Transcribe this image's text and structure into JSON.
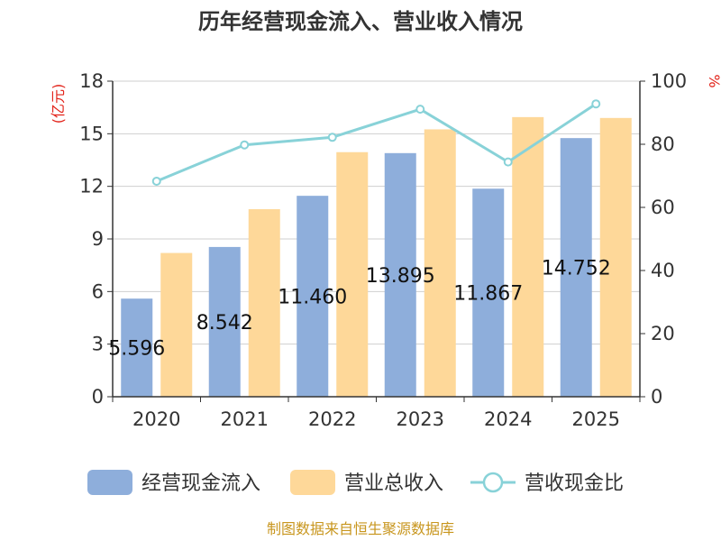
{
  "chart_data": {
    "type": "bar",
    "title": "历年经营现金流入、营业收入情况",
    "categories": [
      "2020",
      "2021",
      "2022",
      "2023",
      "2024",
      "2025"
    ],
    "series": [
      {
        "name": "经营现金流入",
        "type": "bar",
        "axis": "left",
        "color": "#8eaedb",
        "values": [
          5.596,
          8.542,
          11.46,
          13.895,
          11.867,
          14.752
        ],
        "labels": [
          "5.596",
          "8.542",
          "11.460",
          "13.895",
          "11.867",
          "14.752"
        ]
      },
      {
        "name": "营业总收入",
        "type": "bar",
        "axis": "left",
        "color": "#fed899",
        "values": [
          8.2,
          10.7,
          13.95,
          15.25,
          15.95,
          15.9
        ]
      },
      {
        "name": "营收现金比",
        "type": "line",
        "axis": "right",
        "color": "#88d2d8",
        "values": [
          68.3,
          79.8,
          82.2,
          91.1,
          74.4,
          92.8
        ]
      }
    ],
    "y_left": {
      "label": "(亿元)",
      "ylim": [
        0,
        18
      ],
      "ticks": [
        0,
        3,
        6,
        9,
        12,
        15,
        18
      ]
    },
    "y_right": {
      "label": "%",
      "ylim": [
        0,
        100
      ],
      "ticks": [
        0,
        20,
        40,
        60,
        80,
        100
      ]
    },
    "legend_position": "bottom",
    "grid": true,
    "source": "制图数据来自恒生聚源数据库"
  }
}
